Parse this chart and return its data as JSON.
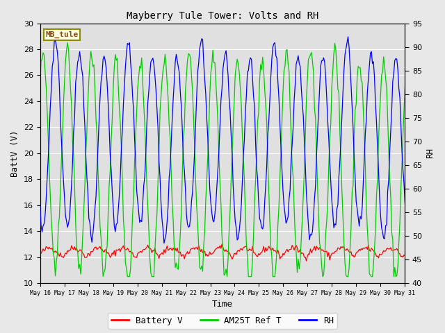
{
  "title": "Mayberry Tule Tower: Volts and RH",
  "xlabel": "Time",
  "ylabel_left": "BattV (V)",
  "ylabel_right": "RH",
  "ylim_left": [
    10,
    30
  ],
  "ylim_right": [
    40,
    95
  ],
  "yticks_left": [
    10,
    12,
    14,
    16,
    18,
    20,
    22,
    24,
    26,
    28,
    30
  ],
  "yticks_right": [
    40,
    45,
    50,
    55,
    60,
    65,
    70,
    75,
    80,
    85,
    90,
    95
  ],
  "station_label": "MB_tule",
  "station_label_color": "#8B4513",
  "station_label_bg": "#FFFFE0",
  "station_label_border": "#8B8B00",
  "color_battery": "#FF0000",
  "color_am25t": "#00CC00",
  "color_rh": "#0000FF",
  "legend_labels": [
    "Battery V",
    "AM25T Ref T",
    "RH"
  ],
  "background_color": "#E0E0E0",
  "grid_color": "#FFFFFF",
  "fig_bg_color": "#E8E8E8",
  "font_family": "monospace",
  "title_fontsize": 10,
  "label_fontsize": 9,
  "tick_fontsize": 8,
  "legend_fontsize": 9
}
